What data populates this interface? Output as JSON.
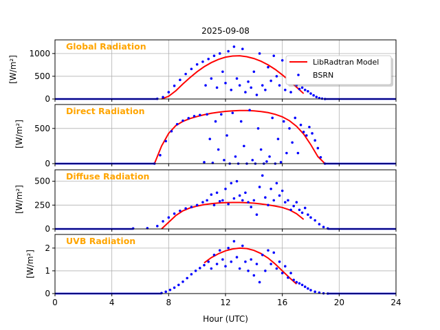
{
  "figure": {
    "title": "2025-09-08",
    "xlabel": "Hour (UTC)"
  },
  "legend": {
    "model_label": "LibRadtran Model",
    "obs_label": "BSRN"
  },
  "colors": {
    "model": "#ff0000",
    "obs": "#0000ff",
    "panel_title": "#ffa500",
    "grid": "#b0b0b0"
  },
  "chart_data": [
    {
      "type": "line",
      "title": "Global Radiation",
      "ylabel": "[W/m²]",
      "xlim": [
        0,
        24
      ],
      "ylim": [
        0,
        1300
      ],
      "xticks": [
        "0",
        "4",
        "8",
        "12",
        "16",
        "20",
        "24"
      ],
      "xtick_values": [
        0,
        4,
        8,
        12,
        16,
        20,
        24
      ],
      "yticks": [
        "0",
        "500",
        "1000"
      ],
      "ytick_values": [
        0,
        500,
        1000
      ],
      "legend_position": "upper right",
      "model": {
        "name": "LibRadtran Model",
        "x": [
          7.5,
          8,
          8.5,
          9,
          9.5,
          10,
          10.5,
          11,
          11.5,
          12,
          12.5,
          13,
          13.5,
          14,
          14.5,
          15,
          15.5,
          16,
          16.5,
          17,
          17.5
        ],
        "y": [
          0,
          60,
          180,
          330,
          470,
          600,
          710,
          800,
          870,
          920,
          945,
          950,
          930,
          890,
          830,
          750,
          650,
          530,
          400,
          260,
          120
        ]
      },
      "obs": {
        "name": "BSRN",
        "x": [
          7.2,
          7.6,
          8,
          8.4,
          8.8,
          9.2,
          9.6,
          10,
          10.4,
          10.6,
          10.8,
          11,
          11.2,
          11.4,
          11.6,
          11.8,
          12,
          12.2,
          12.4,
          12.6,
          12.8,
          13,
          13.2,
          13.4,
          13.6,
          13.8,
          14,
          14.2,
          14.4,
          14.6,
          14.8,
          15,
          15.2,
          15.4,
          15.6,
          15.8,
          16,
          16.2,
          16.4,
          16.6,
          16.8,
          17,
          17.2,
          17.4,
          17.6,
          17.8,
          18,
          18.2,
          18.4,
          18.6,
          18.8,
          19
        ],
        "y": [
          5,
          40,
          150,
          290,
          420,
          550,
          660,
          760,
          820,
          300,
          880,
          450,
          950,
          250,
          1000,
          600,
          350,
          1050,
          200,
          1150,
          450,
          300,
          1100,
          150,
          380,
          250,
          600,
          90,
          1000,
          300,
          200,
          700,
          400,
          950,
          500,
          300,
          850,
          200,
          600,
          150,
          400,
          300,
          220,
          250,
          200,
          170,
          120,
          80,
          45,
          20,
          8,
          0
        ]
      }
    },
    {
      "type": "line",
      "title": "Direct Radiation",
      "ylabel": "[W/m²]",
      "xlim": [
        0,
        24
      ],
      "ylim": [
        0,
        840
      ],
      "xticks": [
        "0",
        "4",
        "8",
        "12",
        "16",
        "20",
        "24"
      ],
      "xtick_values": [
        0,
        4,
        8,
        12,
        16,
        20,
        24
      ],
      "yticks": [
        "0",
        "500"
      ],
      "ytick_values": [
        0,
        500
      ],
      "model": {
        "name": "LibRadtran Model",
        "x": [
          7,
          7.5,
          8,
          8.5,
          9,
          9.5,
          10,
          10.5,
          11,
          11.5,
          12,
          12.5,
          13,
          13.5,
          14,
          14.5,
          15,
          15.5,
          16,
          16.5,
          17,
          17.5,
          18,
          18.5,
          19
        ],
        "y": [
          0,
          250,
          430,
          540,
          600,
          640,
          670,
          695,
          715,
          730,
          742,
          750,
          755,
          755,
          750,
          740,
          725,
          700,
          665,
          610,
          530,
          420,
          270,
          100,
          0
        ]
      },
      "obs": {
        "name": "BSRN",
        "x": [
          7,
          7.4,
          7.8,
          8.2,
          8.6,
          9,
          9.4,
          9.8,
          10.2,
          10.5,
          10.7,
          10.9,
          11.1,
          11.3,
          11.5,
          11.7,
          11.9,
          12.1,
          12.3,
          12.5,
          12.7,
          12.9,
          13.1,
          13.3,
          13.5,
          13.7,
          13.9,
          14.1,
          14.3,
          14.5,
          14.7,
          14.9,
          15.1,
          15.3,
          15.5,
          15.7,
          15.9,
          16.1,
          16.3,
          16.5,
          16.7,
          16.9,
          17.1,
          17.3,
          17.5,
          17.7,
          17.9,
          18.1,
          18.3,
          18.5,
          18.7,
          19
        ],
        "y": [
          0,
          120,
          320,
          460,
          560,
          610,
          645,
          675,
          690,
          20,
          700,
          350,
          10,
          600,
          200,
          700,
          50,
          400,
          0,
          720,
          100,
          0,
          600,
          250,
          0,
          760,
          50,
          0,
          500,
          200,
          0,
          30,
          100,
          650,
          0,
          350,
          20,
          600,
          150,
          500,
          300,
          650,
          150,
          550,
          450,
          400,
          520,
          430,
          330,
          220,
          90,
          0
        ]
      }
    },
    {
      "type": "line",
      "title": "Diffuse Radiation",
      "ylabel": "[W/m²]",
      "xlim": [
        0,
        24
      ],
      "ylim": [
        0,
        620
      ],
      "xticks": [
        "0",
        "4",
        "8",
        "12",
        "16",
        "20",
        "24"
      ],
      "xtick_values": [
        0,
        4,
        8,
        12,
        16,
        20,
        24
      ],
      "yticks": [
        "0",
        "250",
        "500"
      ],
      "ytick_values": [
        0,
        250,
        500
      ],
      "model": {
        "name": "LibRadtran Model",
        "x": [
          7.5,
          8,
          8.5,
          9,
          9.5,
          10,
          10.5,
          11,
          11.5,
          12,
          12.5,
          13,
          13.5,
          14,
          14.5,
          15,
          15.5,
          16,
          16.5,
          17,
          17.5
        ],
        "y": [
          0,
          70,
          140,
          190,
          220,
          240,
          255,
          265,
          272,
          276,
          278,
          278,
          275,
          270,
          262,
          252,
          240,
          225,
          200,
          160,
          100
        ]
      },
      "obs": {
        "name": "BSRN",
        "x": [
          5.5,
          6.5,
          7.2,
          7.6,
          8,
          8.4,
          8.8,
          9.2,
          9.6,
          10,
          10.4,
          10.7,
          11,
          11.2,
          11.4,
          11.6,
          11.8,
          12,
          12.2,
          12.4,
          12.6,
          12.8,
          13,
          13.2,
          13.4,
          13.6,
          13.8,
          14,
          14.2,
          14.4,
          14.6,
          14.8,
          15,
          15.2,
          15.4,
          15.6,
          15.8,
          16,
          16.2,
          16.4,
          16.6,
          16.8,
          17,
          17.2,
          17.4,
          17.6,
          17.8,
          18,
          18.3,
          18.6,
          18.9,
          19.2
        ],
        "y": [
          5,
          8,
          30,
          80,
          120,
          160,
          190,
          215,
          230,
          250,
          280,
          300,
          360,
          250,
          380,
          290,
          300,
          420,
          260,
          480,
          320,
          500,
          350,
          300,
          380,
          280,
          230,
          300,
          150,
          440,
          560,
          330,
          250,
          420,
          300,
          480,
          350,
          400,
          280,
          300,
          200,
          240,
          280,
          200,
          170,
          220,
          150,
          120,
          90,
          50,
          20,
          5
        ]
      }
    },
    {
      "type": "line",
      "title": "UVB Radiation",
      "ylabel": "[W/m²]",
      "xlim": [
        0,
        24
      ],
      "ylim": [
        0,
        2.6
      ],
      "xticks": [
        "0",
        "4",
        "8",
        "12",
        "16",
        "20",
        "24"
      ],
      "xtick_values": [
        0,
        4,
        8,
        12,
        16,
        20,
        24
      ],
      "yticks": [
        "0",
        "1",
        "2"
      ],
      "ytick_values": [
        0,
        1,
        2
      ],
      "model": {
        "name": "LibRadtran Model",
        "x": [
          10.5,
          11,
          11.5,
          12,
          12.5,
          13,
          13.5,
          14,
          14.5,
          15,
          15.5,
          16,
          16.5,
          17
        ],
        "y": [
          1.35,
          1.58,
          1.75,
          1.88,
          1.96,
          2.0,
          1.98,
          1.9,
          1.76,
          1.56,
          1.3,
          1.0,
          0.7,
          0.42
        ]
      },
      "obs": {
        "name": "BSRN",
        "x": [
          7.5,
          7.8,
          8.1,
          8.4,
          8.7,
          9,
          9.3,
          9.6,
          9.9,
          10.2,
          10.5,
          10.8,
          11,
          11.2,
          11.4,
          11.6,
          11.8,
          12,
          12.2,
          12.4,
          12.6,
          12.8,
          13,
          13.2,
          13.4,
          13.6,
          13.8,
          14,
          14.2,
          14.4,
          14.6,
          14.8,
          15,
          15.2,
          15.4,
          15.6,
          15.8,
          16,
          16.2,
          16.4,
          16.6,
          16.8,
          17,
          17.2,
          17.4,
          17.6,
          17.8,
          18,
          18.3,
          18.6,
          18.9,
          19.2
        ],
        "y": [
          0.02,
          0.08,
          0.16,
          0.26,
          0.38,
          0.52,
          0.68,
          0.85,
          1.0,
          1.12,
          1.25,
          1.4,
          1.1,
          1.7,
          1.3,
          1.9,
          1.5,
          1.2,
          2.0,
          1.4,
          2.3,
          1.6,
          1.1,
          2.1,
          1.4,
          1.0,
          1.5,
          0.8,
          1.3,
          0.5,
          1.7,
          1.0,
          1.9,
          1.3,
          1.8,
          1.1,
          1.4,
          0.9,
          1.2,
          0.7,
          0.9,
          0.6,
          0.5,
          0.45,
          0.38,
          0.3,
          0.22,
          0.15,
          0.08,
          0.04,
          0.01,
          0
        ]
      }
    }
  ]
}
